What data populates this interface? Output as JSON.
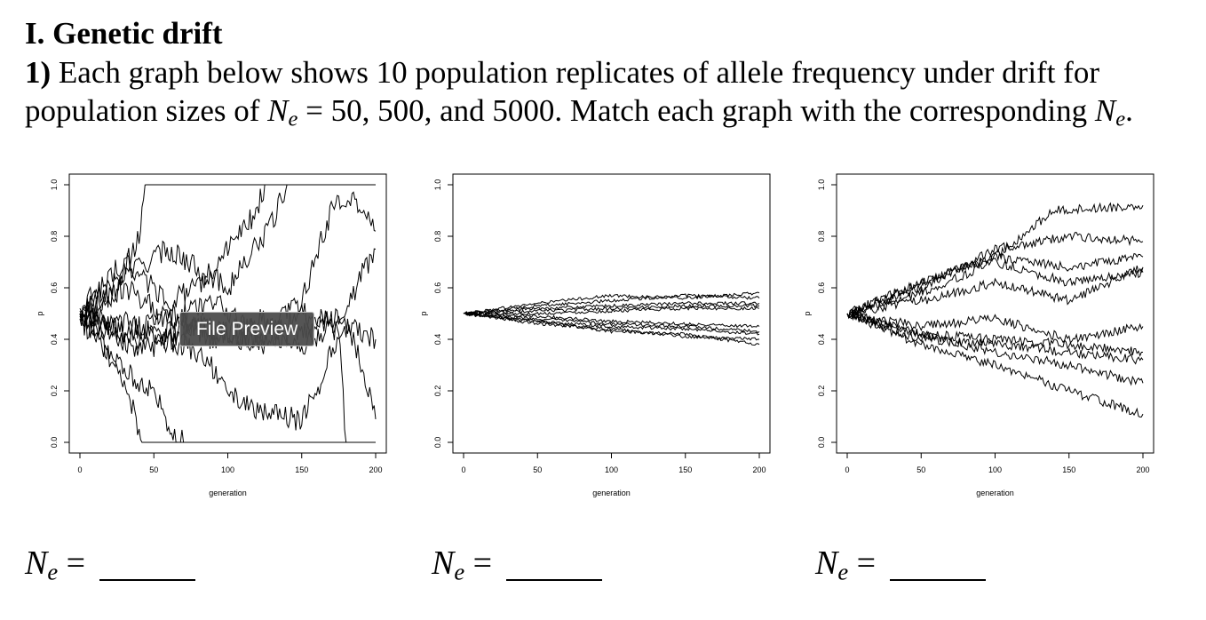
{
  "heading": "I. Genetic drift",
  "question": {
    "number": "1)",
    "text_1": "Each graph below shows 10 population replicates of allele frequency under drift for population sizes of",
    "ne_symbol": "N",
    "ne_sub": "e",
    "text_2": "= 50, 500, and 5000.  Match each graph with the corresponding",
    "text_3": "."
  },
  "overlay_label": "File Preview",
  "answers": {
    "symbol": "N",
    "sub": "e",
    "equals": "="
  },
  "chart_data": [
    {
      "type": "line",
      "title": "",
      "xlabel": "generation",
      "ylabel": "p",
      "xlim": [
        0,
        200
      ],
      "ylim": [
        0,
        1
      ],
      "x_ticks": [
        "0",
        "50",
        "100",
        "150",
        "200"
      ],
      "y_ticks": [
        "0.0",
        "0.2",
        "0.4",
        "0.6",
        "0.8",
        "1.0"
      ],
      "replicates": 10,
      "series": [
        {
          "x": [
            0,
            20,
            40,
            45,
            60,
            100,
            130,
            200
          ],
          "y": [
            0.5,
            0.55,
            0.8,
            1.0,
            1.0,
            1.0,
            1.0,
            1.0
          ]
        },
        {
          "x": [
            0,
            20,
            35,
            42,
            60,
            100,
            200
          ],
          "y": [
            0.5,
            0.35,
            0.15,
            0.0,
            0.0,
            0.0,
            0.0
          ]
        },
        {
          "x": [
            0,
            25,
            50,
            62,
            70,
            100,
            200
          ],
          "y": [
            0.48,
            0.3,
            0.2,
            0.05,
            0.0,
            0.0,
            0.0
          ]
        },
        {
          "x": [
            0,
            30,
            60,
            80,
            100,
            120,
            125,
            200
          ],
          "y": [
            0.52,
            0.7,
            0.55,
            0.6,
            0.75,
            0.9,
            1.0,
            1.0
          ]
        },
        {
          "x": [
            0,
            30,
            60,
            100,
            130,
            140,
            200
          ],
          "y": [
            0.5,
            0.65,
            0.75,
            0.6,
            0.85,
            1.0,
            1.0
          ]
        },
        {
          "x": [
            0,
            40,
            80,
            120,
            150,
            170,
            180,
            190,
            200
          ],
          "y": [
            0.5,
            0.4,
            0.45,
            0.4,
            0.55,
            0.9,
            0.95,
            0.92,
            0.82
          ]
        },
        {
          "x": [
            0,
            40,
            80,
            120,
            150,
            180,
            190,
            200
          ],
          "y": [
            0.49,
            0.35,
            0.45,
            0.38,
            0.42,
            0.5,
            0.65,
            0.75
          ]
        },
        {
          "x": [
            0,
            40,
            80,
            110,
            130,
            150,
            160,
            170,
            180,
            185,
            195,
            200
          ],
          "y": [
            0.5,
            0.45,
            0.35,
            0.15,
            0.12,
            0.08,
            0.2,
            0.35,
            0.45,
            0.4,
            0.2,
            0.09
          ]
        },
        {
          "x": [
            0,
            30,
            60,
            90,
            120,
            150,
            180,
            200
          ],
          "y": [
            0.5,
            0.6,
            0.48,
            0.55,
            0.42,
            0.5,
            0.45,
            0.4
          ]
        },
        {
          "x": [
            0,
            30,
            60,
            90,
            120,
            150,
            175,
            180,
            200
          ],
          "y": [
            0.51,
            0.42,
            0.5,
            0.4,
            0.48,
            0.38,
            0.45,
            0.0,
            0.0
          ]
        }
      ]
    },
    {
      "type": "line",
      "title": "",
      "xlabel": "generation",
      "ylabel": "p",
      "xlim": [
        0,
        200
      ],
      "ylim": [
        0,
        1
      ],
      "x_ticks": [
        "0",
        "50",
        "100",
        "150",
        "200"
      ],
      "y_ticks": [
        "0.0",
        "0.2",
        "0.4",
        "0.6",
        "0.8",
        "1.0"
      ],
      "replicates": 10,
      "series": [
        {
          "x": [
            0,
            50,
            100,
            150,
            200
          ],
          "y": [
            0.5,
            0.54,
            0.57,
            0.56,
            0.58
          ]
        },
        {
          "x": [
            0,
            50,
            100,
            150,
            200
          ],
          "y": [
            0.5,
            0.53,
            0.55,
            0.57,
            0.56
          ]
        },
        {
          "x": [
            0,
            50,
            100,
            150,
            200
          ],
          "y": [
            0.5,
            0.52,
            0.53,
            0.54,
            0.54
          ]
        },
        {
          "x": [
            0,
            50,
            100,
            150,
            200
          ],
          "y": [
            0.5,
            0.51,
            0.52,
            0.53,
            0.53
          ]
        },
        {
          "x": [
            0,
            50,
            100,
            150,
            200
          ],
          "y": [
            0.5,
            0.5,
            0.51,
            0.52,
            0.52
          ]
        },
        {
          "x": [
            0,
            50,
            100,
            150,
            200
          ],
          "y": [
            0.5,
            0.49,
            0.47,
            0.46,
            0.45
          ]
        },
        {
          "x": [
            0,
            50,
            100,
            150,
            200
          ],
          "y": [
            0.5,
            0.48,
            0.46,
            0.45,
            0.43
          ]
        },
        {
          "x": [
            0,
            50,
            100,
            150,
            200
          ],
          "y": [
            0.5,
            0.47,
            0.45,
            0.44,
            0.42
          ]
        },
        {
          "x": [
            0,
            50,
            100,
            150,
            200
          ],
          "y": [
            0.5,
            0.46,
            0.44,
            0.41,
            0.4
          ]
        },
        {
          "x": [
            0,
            50,
            100,
            150,
            200
          ],
          "y": [
            0.5,
            0.47,
            0.43,
            0.42,
            0.38
          ]
        }
      ]
    },
    {
      "type": "line",
      "title": "",
      "xlabel": "generation",
      "ylabel": "p",
      "xlim": [
        0,
        200
      ],
      "ylim": [
        0,
        1
      ],
      "x_ticks": [
        "0",
        "50",
        "100",
        "150",
        "200"
      ],
      "y_ticks": [
        "0.0",
        "0.2",
        "0.4",
        "0.6",
        "0.8",
        "1.0"
      ],
      "replicates": 10,
      "series": [
        {
          "x": [
            0,
            50,
            100,
            140,
            200
          ],
          "y": [
            0.5,
            0.62,
            0.72,
            0.9,
            0.92
          ]
        },
        {
          "x": [
            0,
            50,
            100,
            150,
            200
          ],
          "y": [
            0.5,
            0.6,
            0.75,
            0.8,
            0.78
          ]
        },
        {
          "x": [
            0,
            50,
            100,
            150,
            200
          ],
          "y": [
            0.5,
            0.62,
            0.72,
            0.68,
            0.72
          ]
        },
        {
          "x": [
            0,
            50,
            100,
            150,
            200
          ],
          "y": [
            0.5,
            0.58,
            0.7,
            0.62,
            0.66
          ]
        },
        {
          "x": [
            0,
            50,
            100,
            150,
            200
          ],
          "y": [
            0.5,
            0.55,
            0.62,
            0.55,
            0.68
          ]
        },
        {
          "x": [
            0,
            50,
            100,
            150,
            200
          ],
          "y": [
            0.5,
            0.45,
            0.48,
            0.4,
            0.45
          ]
        },
        {
          "x": [
            0,
            50,
            100,
            150,
            200
          ],
          "y": [
            0.5,
            0.42,
            0.4,
            0.38,
            0.35
          ]
        },
        {
          "x": [
            0,
            50,
            100,
            150,
            200
          ],
          "y": [
            0.5,
            0.4,
            0.38,
            0.35,
            0.32
          ]
        },
        {
          "x": [
            0,
            50,
            100,
            150,
            200
          ],
          "y": [
            0.5,
            0.42,
            0.35,
            0.3,
            0.23
          ]
        },
        {
          "x": [
            0,
            50,
            100,
            150,
            200
          ],
          "y": [
            0.5,
            0.38,
            0.3,
            0.2,
            0.11
          ]
        }
      ]
    }
  ]
}
